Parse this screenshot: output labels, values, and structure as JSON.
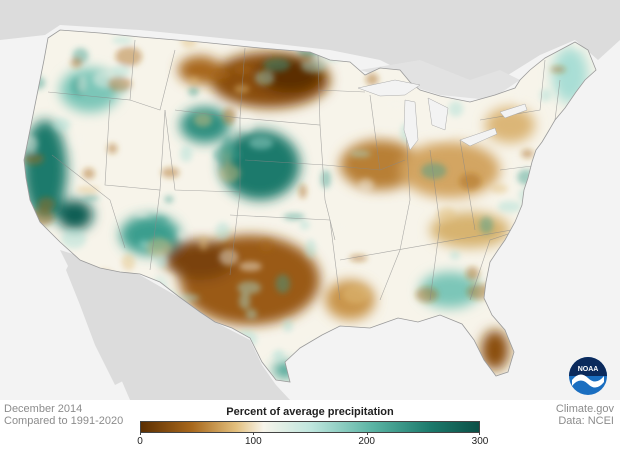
{
  "map": {
    "title": "Percent of average precipitation",
    "period": "December 2014",
    "baseline": "Compared to 1991-2020",
    "source": "Climate.gov",
    "data_credit": "Data: NCEI"
  },
  "legend": {
    "title": "Percent of average precipitation",
    "min": 0,
    "max": 300,
    "ticks": [
      {
        "value": 0,
        "label": "0"
      },
      {
        "value": 100,
        "label": "100"
      },
      {
        "value": 200,
        "label": "200"
      },
      {
        "value": 300,
        "label": "300"
      }
    ],
    "colors": {
      "very_dry": "#5c2f02",
      "dry": "#a8681c",
      "slightly_dry": "#e3c07e",
      "normal": "#f7f4ea",
      "slightly_wet": "#a9ded5",
      "wet": "#3a9e8e",
      "very_wet": "#0b4e45"
    }
  },
  "logo": {
    "text": "NOAA",
    "icon": "noaa-logo-icon",
    "color": "#1a6ec0"
  }
}
